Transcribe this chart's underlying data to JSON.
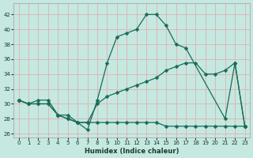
{
  "xlabel": "Humidex (Indice chaleur)",
  "bg_color": "#c5e8e0",
  "line_color": "#1a6b5a",
  "grid_color": "#e8c8c8",
  "xlim": [
    -0.5,
    23.5
  ],
  "ylim": [
    25.5,
    43.5
  ],
  "xticks": [
    0,
    1,
    2,
    3,
    4,
    5,
    6,
    7,
    8,
    9,
    10,
    11,
    12,
    13,
    14,
    15,
    16,
    17,
    18,
    19,
    20,
    21,
    22,
    23
  ],
  "yticks": [
    26,
    28,
    30,
    32,
    34,
    36,
    38,
    40,
    42
  ],
  "curve1_x": [
    0,
    1,
    2,
    3,
    4,
    5,
    6,
    7,
    8,
    9,
    10,
    11,
    12,
    13,
    14,
    15,
    16,
    17,
    21,
    22,
    23
  ],
  "curve1_y": [
    30.5,
    30,
    30,
    30,
    28.5,
    28.5,
    27.5,
    26.5,
    30.5,
    35.5,
    39,
    39.5,
    40,
    42,
    42,
    40.5,
    38,
    37.5,
    28,
    35.5,
    27
  ],
  "curve2_x": [
    0,
    1,
    2,
    3,
    4,
    5,
    6,
    7,
    8,
    9,
    10,
    11,
    12,
    13,
    14,
    15,
    16,
    17,
    18,
    19,
    20,
    21,
    22,
    23
  ],
  "curve2_y": [
    30.5,
    30,
    30,
    30,
    28.5,
    28,
    27.5,
    27.5,
    27.5,
    27.5,
    27.5,
    27.5,
    27.5,
    27.5,
    27.5,
    27,
    27,
    27,
    27,
    27,
    27,
    27,
    27,
    27
  ],
  "curve3_x": [
    0,
    1,
    2,
    3,
    4,
    5,
    6,
    7,
    8,
    9,
    10,
    11,
    12,
    13,
    14,
    15,
    16,
    17,
    18,
    19,
    20,
    21,
    22,
    23
  ],
  "curve3_y": [
    30.5,
    30,
    30.5,
    30.5,
    28.5,
    28,
    27.5,
    27.5,
    30,
    31,
    31.5,
    32,
    32.5,
    33,
    33.5,
    34.5,
    35,
    35.5,
    35.5,
    34,
    34,
    34.5,
    35.5,
    27
  ]
}
